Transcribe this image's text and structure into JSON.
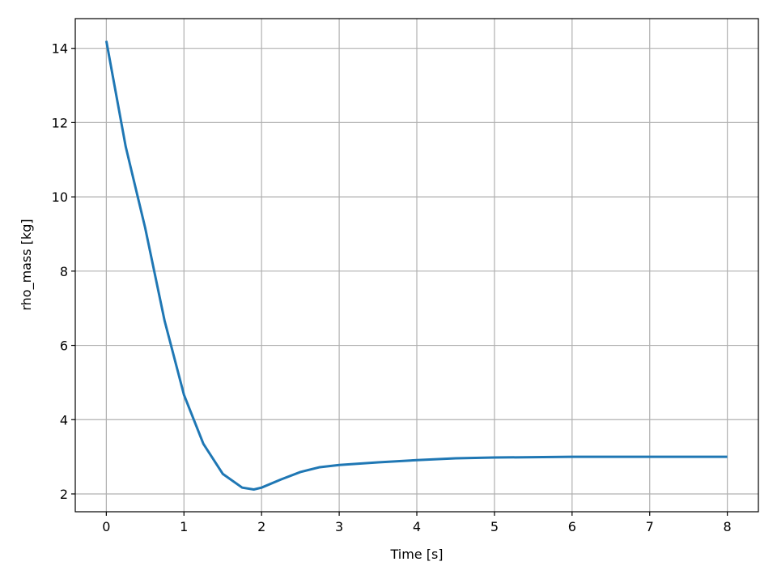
{
  "chart_data": {
    "type": "line",
    "x_label": "Time [s]",
    "y_label": "rho_mass [kg]",
    "x": [
      0,
      0.25,
      0.5,
      0.75,
      1.0,
      1.25,
      1.5,
      1.75,
      1.9,
      2.0,
      2.25,
      2.5,
      2.75,
      3.0,
      3.5,
      4.0,
      4.5,
      5.0,
      6.0,
      7.0,
      8.0
    ],
    "series": [
      {
        "name": "rho_mass",
        "color": "#1f77b4",
        "values": [
          14.2,
          11.35,
          9.17,
          6.67,
          4.67,
          3.35,
          2.54,
          2.17,
          2.12,
          2.17,
          2.39,
          2.59,
          2.72,
          2.78,
          2.85,
          2.91,
          2.96,
          2.98,
          3.0,
          3.0,
          3.0
        ]
      }
    ],
    "xlim": [
      -0.4,
      8.4
    ],
    "ylim": [
      1.52,
      14.8
    ],
    "xticks": [
      0,
      1,
      2,
      3,
      4,
      5,
      6,
      7,
      8
    ],
    "yticks": [
      2,
      4,
      6,
      8,
      10,
      12,
      14
    ],
    "grid": true
  }
}
